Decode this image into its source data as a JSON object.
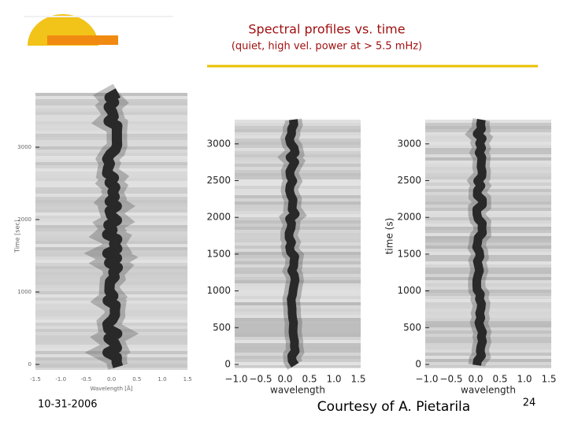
{
  "header": {
    "title": "Spectral profiles vs. time",
    "subtitle": "(quiet, high vel. power at > 5.5 mHz)"
  },
  "panels": [
    {
      "y_ticks": [
        "0",
        "1000",
        "2000",
        "3000"
      ],
      "x_ticks": [
        "-1.5",
        "-1.0",
        "-0.5",
        "0.0",
        "0.5",
        "1.0",
        "1.5"
      ],
      "y_label": "Time [sec]",
      "x_label": "Wavelength [Å]"
    },
    {
      "y_ticks": [
        "0",
        "500",
        "1000",
        "1500",
        "2000",
        "2500",
        "3000"
      ],
      "x_ticks": [
        "−1.0",
        "−0.5",
        "0.0",
        "0.5",
        "1.0",
        "1.5"
      ],
      "x_label": "wavelength"
    },
    {
      "y_ticks": [
        "0",
        "500",
        "1000",
        "1500",
        "2000",
        "2500",
        "3000"
      ],
      "x_ticks": [
        "−1.0",
        "−0.5",
        "0.0",
        "0.5",
        "1.0",
        "1.5"
      ],
      "y_label": "time (s)",
      "x_label": "wavelength"
    }
  ],
  "footer": {
    "date": "10-31-2006",
    "credit": "Courtesy of A. Pietarila",
    "page": "24"
  }
}
